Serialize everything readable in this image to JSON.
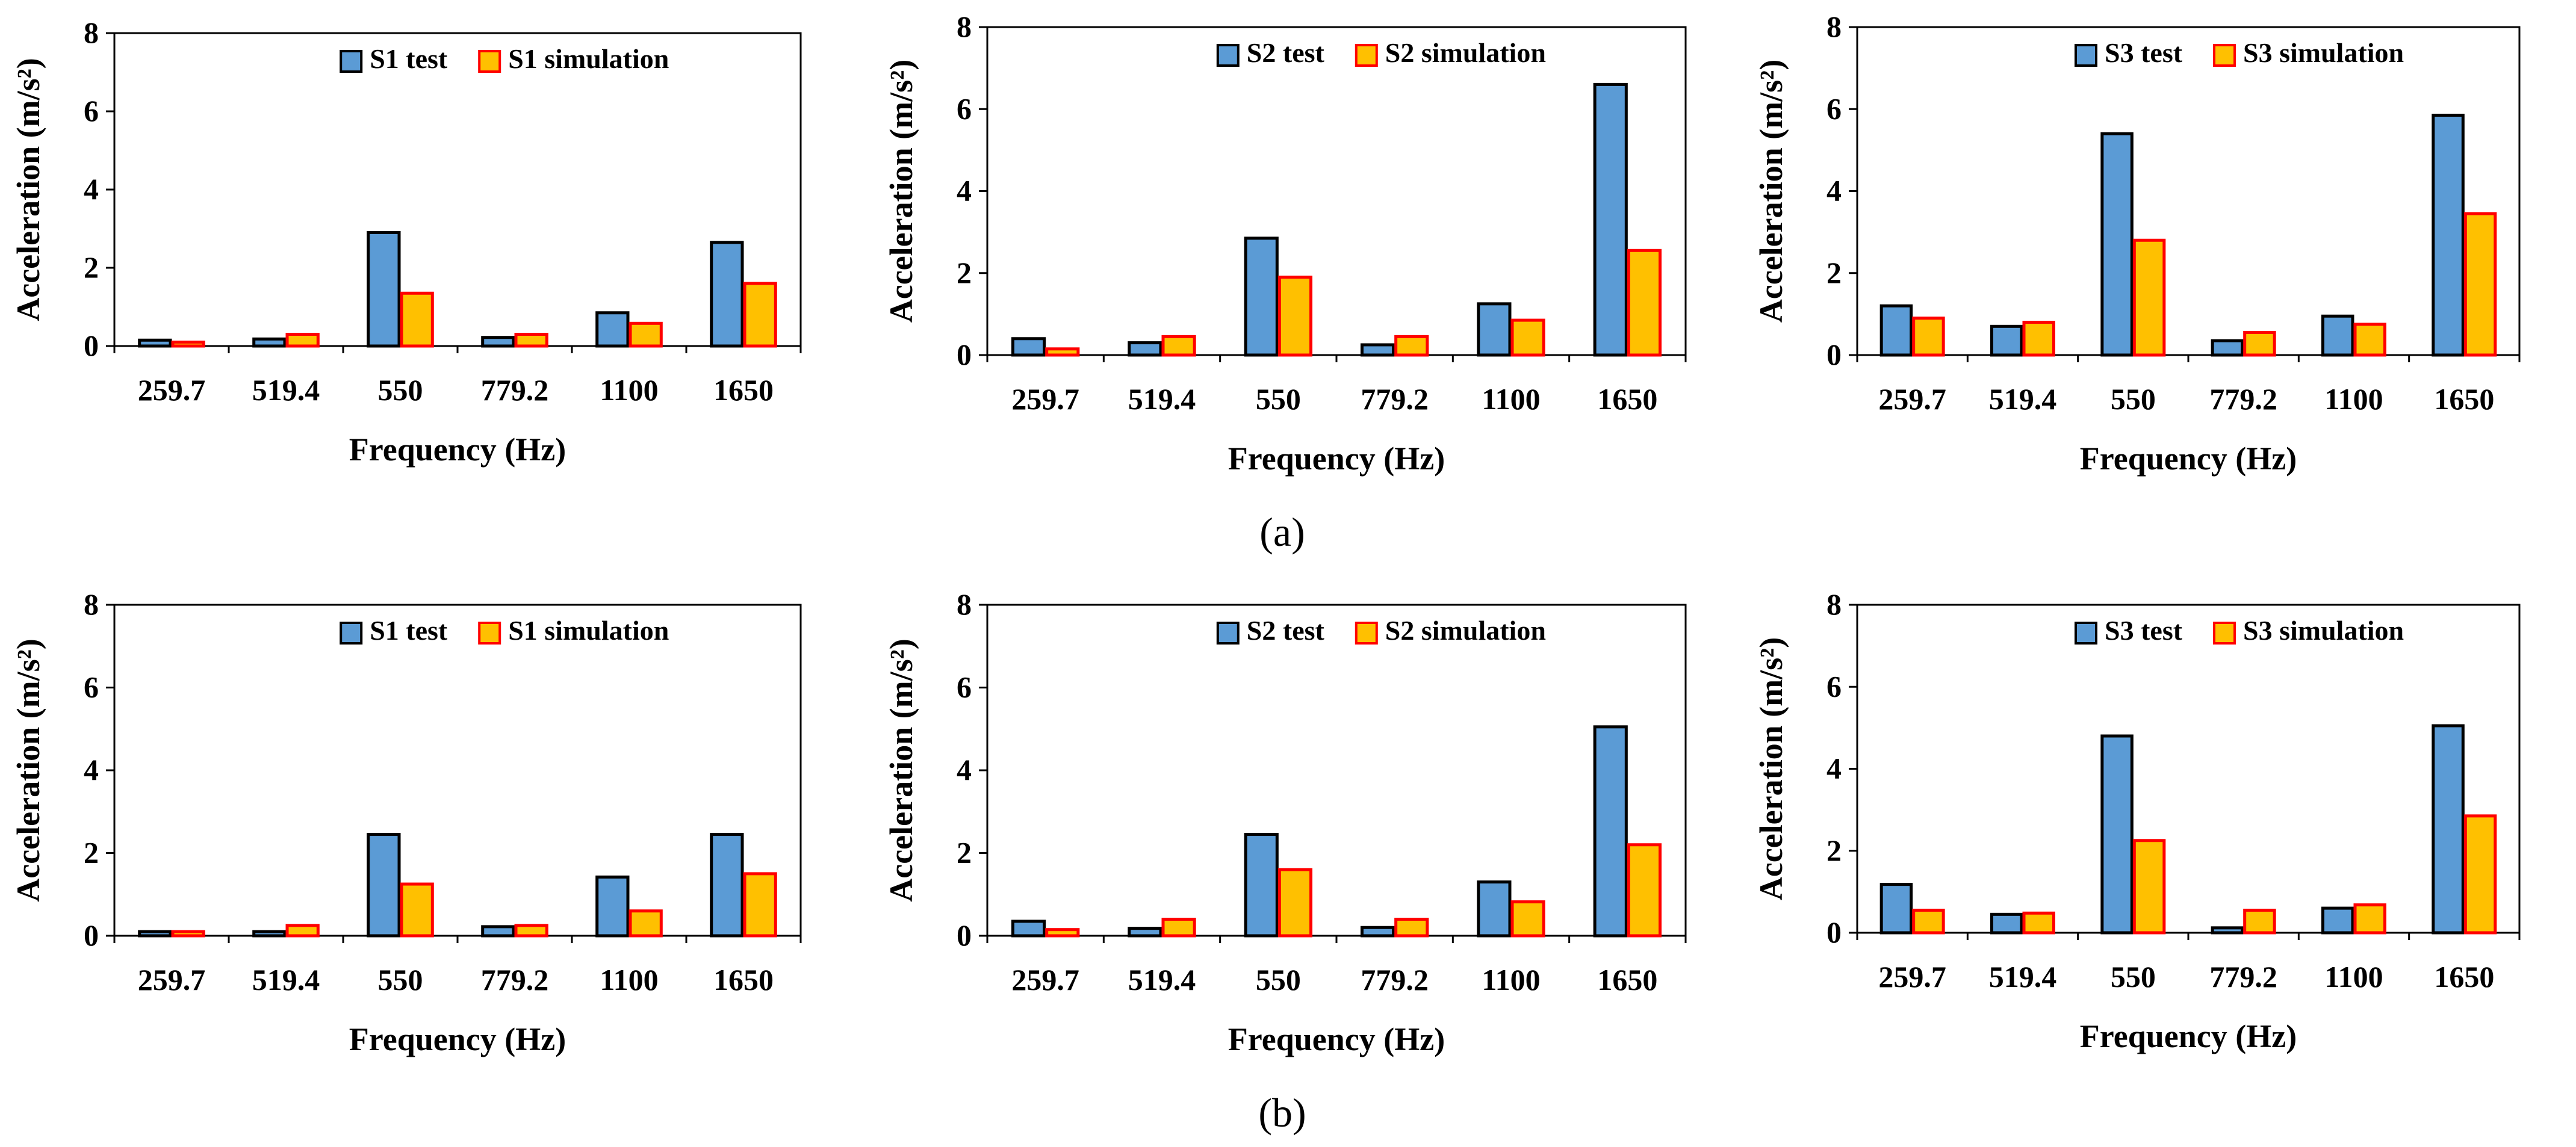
{
  "row_labels": [
    "(a)",
    "(b)"
  ],
  "colors": {
    "test_fill": "#5B9BD5",
    "test_stroke": "#000000",
    "sim_fill": "#FFC000",
    "sim_stroke": "#FF0000"
  },
  "chart_data": [
    {
      "id": "a1",
      "type": "bar",
      "categories": [
        "259.7",
        "519.4",
        "550",
        "779.2",
        "1100",
        "1650"
      ],
      "series": [
        {
          "name": "S1 test",
          "values": [
            0.15,
            0.18,
            2.9,
            0.22,
            0.85,
            2.65
          ]
        },
        {
          "name": "S1 simulation",
          "values": [
            0.1,
            0.3,
            1.35,
            0.3,
            0.58,
            1.6
          ]
        }
      ],
      "xlabel": "Frequency (Hz)",
      "ylabel": "Acceleration (m/s²)",
      "ylim": [
        0,
        8
      ],
      "yticks": [
        0,
        2,
        4,
        6,
        8
      ],
      "grid": false,
      "legend": "top-center"
    },
    {
      "id": "a2",
      "type": "bar",
      "categories": [
        "259.7",
        "519.4",
        "550",
        "779.2",
        "1100",
        "1650"
      ],
      "series": [
        {
          "name": "S2 test",
          "values": [
            0.4,
            0.3,
            2.85,
            0.25,
            1.25,
            6.6
          ]
        },
        {
          "name": "S2 simulation",
          "values": [
            0.15,
            0.45,
            1.9,
            0.45,
            0.85,
            2.55
          ]
        }
      ],
      "xlabel": "Frequency (Hz)",
      "ylabel": "Acceleration (m/s²)",
      "ylim": [
        0,
        8
      ],
      "yticks": [
        0,
        2,
        4,
        6,
        8
      ],
      "grid": false,
      "legend": "top-center"
    },
    {
      "id": "a3",
      "type": "bar",
      "categories": [
        "259.7",
        "519.4",
        "550",
        "779.2",
        "1100",
        "1650"
      ],
      "series": [
        {
          "name": "S3 test",
          "values": [
            1.2,
            0.7,
            5.4,
            0.35,
            0.95,
            5.85
          ]
        },
        {
          "name": "S3 simulation",
          "values": [
            0.9,
            0.8,
            2.8,
            0.55,
            0.75,
            3.45
          ]
        }
      ],
      "xlabel": "Frequency (Hz)",
      "ylabel": "Acceleration (m/s²)",
      "ylim": [
        0,
        8
      ],
      "yticks": [
        0,
        2,
        4,
        6,
        8
      ],
      "grid": false,
      "legend": "top-center"
    },
    {
      "id": "b1",
      "type": "bar",
      "categories": [
        "259.7",
        "519.4",
        "550",
        "779.2",
        "1100",
        "1650"
      ],
      "series": [
        {
          "name": "S1 test",
          "values": [
            0.1,
            0.1,
            2.45,
            0.22,
            1.42,
            2.45
          ]
        },
        {
          "name": "S1 simulation",
          "values": [
            0.1,
            0.25,
            1.25,
            0.25,
            0.6,
            1.5
          ]
        }
      ],
      "xlabel": "Frequency (Hz)",
      "ylabel": "Acceleration (m/s²)",
      "ylim": [
        0,
        8
      ],
      "yticks": [
        0,
        2,
        4,
        6,
        8
      ],
      "grid": false,
      "legend": "top-center"
    },
    {
      "id": "b2",
      "type": "bar",
      "categories": [
        "259.7",
        "519.4",
        "550",
        "779.2",
        "1100",
        "1650"
      ],
      "series": [
        {
          "name": "S2 test",
          "values": [
            0.35,
            0.18,
            2.45,
            0.2,
            1.3,
            5.05
          ]
        },
        {
          "name": "S2 simulation",
          "values": [
            0.15,
            0.4,
            1.6,
            0.4,
            0.82,
            2.2
          ]
        }
      ],
      "xlabel": "Frequency (Hz)",
      "ylabel": "Acceleration (m/s²)",
      "ylim": [
        0,
        8
      ],
      "yticks": [
        0,
        2,
        4,
        6,
        8
      ],
      "grid": false,
      "legend": "top-center"
    },
    {
      "id": "b3",
      "type": "bar",
      "categories": [
        "259.7",
        "519.4",
        "550",
        "779.2",
        "1100",
        "1650"
      ],
      "series": [
        {
          "name": "S3 test",
          "values": [
            1.18,
            0.45,
            4.8,
            0.12,
            0.6,
            5.05
          ]
        },
        {
          "name": "S3 simulation",
          "values": [
            0.55,
            0.48,
            2.25,
            0.55,
            0.68,
            2.85
          ]
        }
      ],
      "xlabel": "Frequency (Hz)",
      "ylabel": "Acceleration (m/s²)",
      "ylim": [
        0,
        8
      ],
      "yticks": [
        0,
        2,
        4,
        6,
        8
      ],
      "grid": false,
      "legend": "top-center"
    }
  ]
}
